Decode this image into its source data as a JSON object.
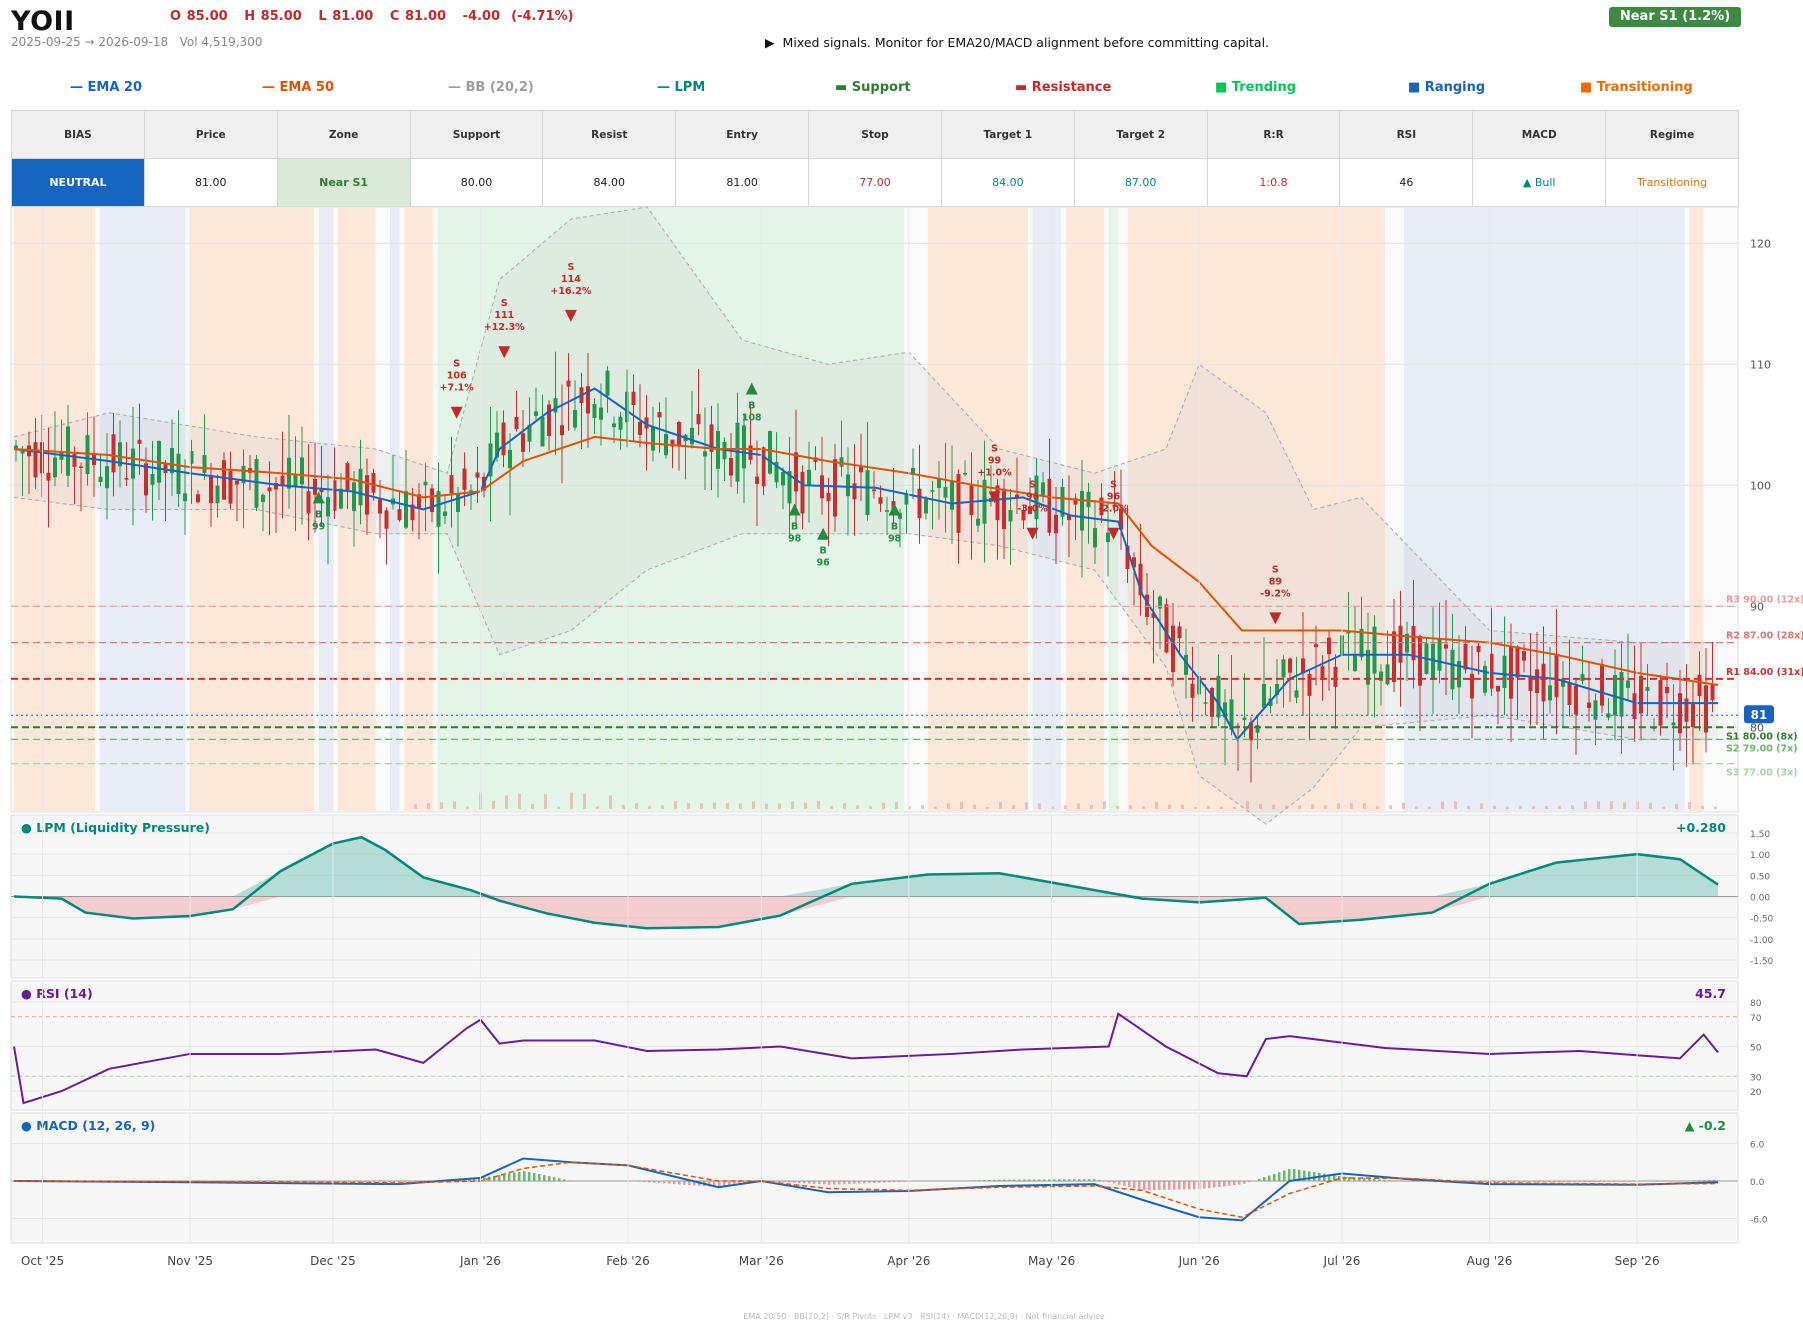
{
  "header": {
    "ticker": "YOII",
    "ohlc": "O 85.00   H 85.00   L 81.00   C 81.00   -4.00  (-4.71%)",
    "date_range": "2025-09-25 → 2026-09-18",
    "volume": "Vol 4,519,300",
    "signal": "▶  Mixed signals. Monitor for EMA20/MACD alignment before committing capital.",
    "zone_badge": "Near S1  (1.2%)"
  },
  "legend": [
    {
      "label": "— EMA 20",
      "color": "#1565c0"
    },
    {
      "label": "— EMA 50",
      "color": "#e65100"
    },
    {
      "label": "— BB (20,2)",
      "color": "#9e9e9e"
    },
    {
      "label": "— LPM",
      "color": "#00897b"
    },
    {
      "label": "▬  Support",
      "color": "#2e7d32"
    },
    {
      "label": "▬  Resistance",
      "color": "#c62828"
    },
    {
      "label": "■  Trending",
      "color": "#00c853"
    },
    {
      "label": "■  Ranging",
      "color": "#1565c0"
    },
    {
      "label": "■  Transitioning",
      "color": "#ef6c00"
    }
  ],
  "table": {
    "headers": [
      "BIAS",
      "Price",
      "Zone",
      "Support",
      "Resist",
      "Entry",
      "Stop",
      "Target 1",
      "Target 2",
      "R:R",
      "RSI",
      "MACD",
      "Regime"
    ],
    "values": [
      "NEUTRAL",
      "81.00",
      "Near S1",
      "80.00",
      "84.00",
      "81.00",
      "77.00",
      "84.00",
      "87.00",
      "1:0.8",
      "46",
      "▲ Bull",
      "Transitioning"
    ],
    "value_colors": [
      "#ffffff",
      "#222222",
      "#2e7d32",
      "#222222",
      "#222222",
      "#222222",
      "#c62828",
      "#00897b",
      "#00897b",
      "#c62828",
      "#222222",
      "#00897b",
      "#ef6c00"
    ]
  },
  "chart_data": [
    {
      "type": "line",
      "title": "",
      "series": [
        {
          "name": "EMA 20",
          "color": "#1565c0",
          "x": [
            "2025-09-25",
            "2025-10-15",
            "2025-11-01",
            "2025-11-20",
            "2025-12-05",
            "2025-12-20",
            "2026-01-01",
            "2026-01-05",
            "2026-01-15",
            "2026-01-25",
            "2026-02-05",
            "2026-02-20",
            "2026-03-01",
            "2026-03-10",
            "2026-03-25",
            "2026-04-10",
            "2026-04-25",
            "2026-05-05",
            "2026-05-15",
            "2026-05-20",
            "2026-05-28",
            "2026-06-05",
            "2026-06-09",
            "2026-06-20",
            "2026-07-01",
            "2026-07-15",
            "2026-08-01",
            "2026-08-15",
            "2026-09-01",
            "2026-09-18"
          ],
          "values": [
            103,
            102,
            101,
            100,
            99.5,
            98,
            99.5,
            103,
            106,
            108,
            105,
            103,
            102.5,
            100,
            99.8,
            98.5,
            99,
            97.5,
            97,
            91,
            86,
            82,
            79,
            84,
            86,
            86,
            84.5,
            84,
            82,
            82
          ]
        },
        {
          "name": "EMA 50",
          "color": "#e65100",
          "x": [
            "2025-09-25",
            "2025-10-15",
            "2025-11-01",
            "2025-11-20",
            "2025-12-05",
            "2025-12-20",
            "2026-01-01",
            "2026-01-10",
            "2026-01-25",
            "2026-02-05",
            "2026-02-20",
            "2026-03-01",
            "2026-03-15",
            "2026-04-01",
            "2026-04-15",
            "2026-05-01",
            "2026-05-15",
            "2026-05-22",
            "2026-06-01",
            "2026-06-10",
            "2026-06-20",
            "2026-07-01",
            "2026-07-15",
            "2026-08-01",
            "2026-08-15",
            "2026-09-01",
            "2026-09-18"
          ],
          "values": [
            103,
            102.5,
            101.5,
            101,
            100.5,
            99,
            99.5,
            102,
            104,
            103.5,
            103,
            103,
            102,
            101,
            100,
            99,
            98.5,
            95,
            92,
            88,
            88,
            88,
            87.5,
            87,
            86,
            84.5,
            83.5
          ]
        },
        {
          "name": "BB (20,2)",
          "color": "#9e9e9e",
          "x": [
            "2025-09-25",
            "2025-10-15",
            "2025-11-15",
            "2025-12-10",
            "2025-12-25",
            "2026-01-05",
            "2026-01-20",
            "2026-02-05",
            "2026-02-25",
            "2026-03-15",
            "2026-04-01",
            "2026-04-20",
            "2026-05-10",
            "2026-05-25",
            "2026-06-01",
            "2026-06-15",
            "2026-06-25",
            "2026-07-05",
            "2026-08-01",
            "2026-09-01",
            "2026-09-18"
          ],
          "upper": [
            104,
            106,
            104,
            103,
            101,
            117,
            122,
            123,
            112,
            110,
            111,
            103,
            101,
            103,
            110,
            106,
            98,
            99,
            88,
            87,
            87
          ],
          "lower": [
            99,
            98,
            98,
            96,
            96,
            86,
            88,
            93,
            96,
            96,
            96,
            95,
            93,
            85,
            76,
            72,
            75,
            80,
            81,
            79,
            79
          ]
        }
      ],
      "candles_summary": "daily OHLC candles, open 103 → close 81, high ~120 (Jan '26), low ~71 (Jun '26)",
      "trade_markers": [
        {
          "side": "B",
          "date": "2025-11-28",
          "price": 99,
          "label": "B\n99"
        },
        {
          "side": "S",
          "date": "2025-12-27",
          "price": 106,
          "label": "S\n106\n+7.1%"
        },
        {
          "side": "S",
          "date": "2026-01-06",
          "price": 111,
          "label": "S\n111\n+12.3%"
        },
        {
          "side": "S",
          "date": "2026-01-20",
          "price": 114,
          "label": "S\n114\n+16.2%"
        },
        {
          "side": "B",
          "date": "2026-02-27",
          "price": 108,
          "label": "B\n108"
        },
        {
          "side": "B",
          "date": "2026-03-08",
          "price": 98,
          "label": "B\n98"
        },
        {
          "side": "B",
          "date": "2026-03-14",
          "price": 96,
          "label": "B\n96"
        },
        {
          "side": "B",
          "date": "2026-03-29",
          "price": 98,
          "label": "B\n98"
        },
        {
          "side": "S",
          "date": "2026-04-19",
          "price": 99,
          "label": "S\n99\n+1.0%"
        },
        {
          "side": "S",
          "date": "2026-04-27",
          "price": 96,
          "label": "S\n96\n-3.0%"
        },
        {
          "side": "S",
          "date": "2026-05-14",
          "price": 96,
          "label": "S\n96\n-2.0%"
        },
        {
          "side": "S",
          "date": "2026-06-17",
          "price": 89,
          "label": "S\n89\n-9.2%"
        }
      ],
      "levels": [
        {
          "label": "R3 90.00 (12x)",
          "value": 90,
          "color": "#ef9a9a"
        },
        {
          "label": "R2 87.00 (28x)",
          "value": 87,
          "color": "#e57373"
        },
        {
          "label": "R1 84.00 (31x)",
          "value": 84,
          "color": "#d32f2f"
        },
        {
          "label": "S1 80.00 (8x)",
          "value": 80,
          "color": "#2e7d32"
        },
        {
          "label": "S2 79.00 (7x)",
          "value": 79,
          "color": "#66bb6a"
        },
        {
          "label": "S3 77.00 (3x)",
          "value": 77,
          "color": "#a5d6a7"
        }
      ],
      "last_price": 81,
      "regimes": [
        {
          "start": "2025-09-25",
          "end": "2025-10-12",
          "regime": "Transitioning"
        },
        {
          "start": "2025-10-13",
          "end": "2025-10-31",
          "regime": "Ranging"
        },
        {
          "start": "2025-11-01",
          "end": "2025-11-27",
          "regime": "Transitioning"
        },
        {
          "start": "2025-11-28",
          "end": "2025-12-01",
          "regime": "Ranging"
        },
        {
          "start": "2025-12-02",
          "end": "2025-12-10",
          "regime": "Transitioning"
        },
        {
          "start": "2025-12-13",
          "end": "2025-12-15",
          "regime": "Ranging"
        },
        {
          "start": "2025-12-16",
          "end": "2025-12-22",
          "regime": "Transitioning"
        },
        {
          "start": "2025-12-23",
          "end": "2026-03-31",
          "regime": "Trending"
        },
        {
          "start": "2026-04-05",
          "end": "2026-04-26",
          "regime": "Transitioning"
        },
        {
          "start": "2026-04-27",
          "end": "2026-05-03",
          "regime": "Ranging"
        },
        {
          "start": "2026-05-04",
          "end": "2026-05-12",
          "regime": "Transitioning"
        },
        {
          "start": "2026-05-13",
          "end": "2026-05-15",
          "regime": "Trending"
        },
        {
          "start": "2026-05-17",
          "end": "2026-07-10",
          "regime": "Transitioning"
        },
        {
          "start": "2026-07-14",
          "end": "2026-09-11",
          "regime": "Ranging"
        },
        {
          "start": "2026-09-12",
          "end": "2026-09-15",
          "regime": "Transitioning"
        }
      ],
      "x_ticks": [
        "Oct '25",
        "Nov '25",
        "Dec '25",
        "Jan '26",
        "Feb '26",
        "Mar '26",
        "Apr '26",
        "May '26",
        "Jun '26",
        "Jul '26",
        "Aug '26",
        "Sep '26"
      ],
      "y_ticks": [
        80,
        90,
        100,
        110,
        120
      ],
      "ylim": [
        73,
        123
      ]
    },
    {
      "type": "area",
      "title": "● LPM (Liquidity Pressure)",
      "current_value": "+0.280",
      "y_ticks": [
        "1.50",
        "1.00",
        "0.50",
        "0.00",
        "-0.50",
        "-1.00",
        "-1.50"
      ],
      "ylim": [
        -1.5,
        1.5
      ],
      "x": [
        "2025-09-25",
        "2025-10-05",
        "2025-10-10",
        "2025-10-20",
        "2025-11-01",
        "2025-11-10",
        "2025-11-20",
        "2025-12-01",
        "2025-12-07",
        "2025-12-12",
        "2025-12-20",
        "2025-12-30",
        "2026-01-05",
        "2026-01-15",
        "2026-01-25",
        "2026-02-05",
        "2026-02-20",
        "2026-03-05",
        "2026-03-20",
        "2026-04-05",
        "2026-04-20",
        "2026-05-05",
        "2026-05-20",
        "2026-06-01",
        "2026-06-15",
        "2026-06-22",
        "2026-07-05",
        "2026-07-20",
        "2026-08-01",
        "2026-08-15",
        "2026-09-01",
        "2026-09-10",
        "2026-09-18"
      ],
      "values": [
        0.0,
        -0.05,
        -0.38,
        -0.52,
        -0.46,
        -0.3,
        0.6,
        1.25,
        1.4,
        1.1,
        0.45,
        0.15,
        -0.1,
        -0.4,
        -0.62,
        -0.75,
        -0.72,
        -0.45,
        0.3,
        0.52,
        0.55,
        0.25,
        -0.05,
        -0.14,
        -0.03,
        -0.65,
        -0.55,
        -0.38,
        0.3,
        0.8,
        1.0,
        0.88,
        0.28
      ]
    },
    {
      "type": "line",
      "title": "● RSI (14)",
      "current_value": "45.7",
      "y_ticks": [
        80,
        70,
        50,
        30,
        20
      ],
      "ylim": [
        10,
        90
      ],
      "x": [
        "2025-09-25",
        "2025-09-27",
        "2025-10-05",
        "2025-10-15",
        "2025-11-01",
        "2025-11-20",
        "2025-12-10",
        "2025-12-20",
        "2025-12-29",
        "2026-01-01",
        "2026-01-05",
        "2026-01-10",
        "2026-01-25",
        "2026-02-05",
        "2026-02-20",
        "2026-03-05",
        "2026-03-20",
        "2026-04-10",
        "2026-04-25",
        "2026-05-13",
        "2026-05-15",
        "2026-05-25",
        "2026-06-05",
        "2026-06-11",
        "2026-06-15",
        "2026-06-20",
        "2026-07-10",
        "2026-08-01",
        "2026-08-20",
        "2026-09-10",
        "2026-09-15",
        "2026-09-18"
      ],
      "values": [
        50,
        12,
        20,
        35,
        45,
        45,
        48,
        39,
        62,
        68,
        52,
        54,
        54,
        47,
        48,
        50,
        42,
        45,
        48,
        50,
        72,
        50,
        32,
        30,
        55,
        57,
        49,
        45,
        47,
        42,
        58,
        46
      ]
    },
    {
      "type": "line",
      "title": "● MACD (12, 26, 9)",
      "current_value": "▲ -0.2",
      "y_ticks": [
        "6.0",
        "0.0",
        "-6.0"
      ],
      "ylim": [
        -8,
        8
      ],
      "x": [
        "2025-09-25",
        "2025-11-01",
        "2025-12-15",
        "2026-01-01",
        "2026-01-10",
        "2026-01-20",
        "2026-02-01",
        "2026-02-20",
        "2026-03-01",
        "2026-03-15",
        "2026-04-01",
        "2026-04-20",
        "2026-05-10",
        "2026-05-20",
        "2026-06-01",
        "2026-06-10",
        "2026-06-20",
        "2026-07-01",
        "2026-07-15",
        "2026-08-01",
        "2026-09-01",
        "2026-09-18"
      ],
      "series": [
        {
          "name": "MACD",
          "color": "#1565c0",
          "values": [
            0,
            -0.2,
            -0.5,
            0.5,
            3.6,
            3.0,
            2.5,
            -1.0,
            0,
            -1.8,
            -1.6,
            -0.8,
            -0.5,
            -3.0,
            -5.8,
            -6.3,
            0,
            1.2,
            0.3,
            -0.5,
            -0.6,
            -0.2
          ]
        },
        {
          "name": "Signal",
          "color": "#e65100",
          "values": [
            0,
            -0.1,
            -0.3,
            0,
            2.0,
            3.0,
            2.5,
            0,
            0,
            -1.2,
            -1.5,
            -1.0,
            -0.8,
            -1.5,
            -4.5,
            -5.8,
            -2.0,
            0.5,
            0.4,
            -0.3,
            -0.5,
            -0.4
          ]
        }
      ]
    }
  ],
  "footer": "EMA 20/50  ·  BB(20,2)  ·  S/R Pivots  ·  LPM v3  ·  RSI(14)  ·  MACD(12,26,9)  ·  Not financial advice"
}
